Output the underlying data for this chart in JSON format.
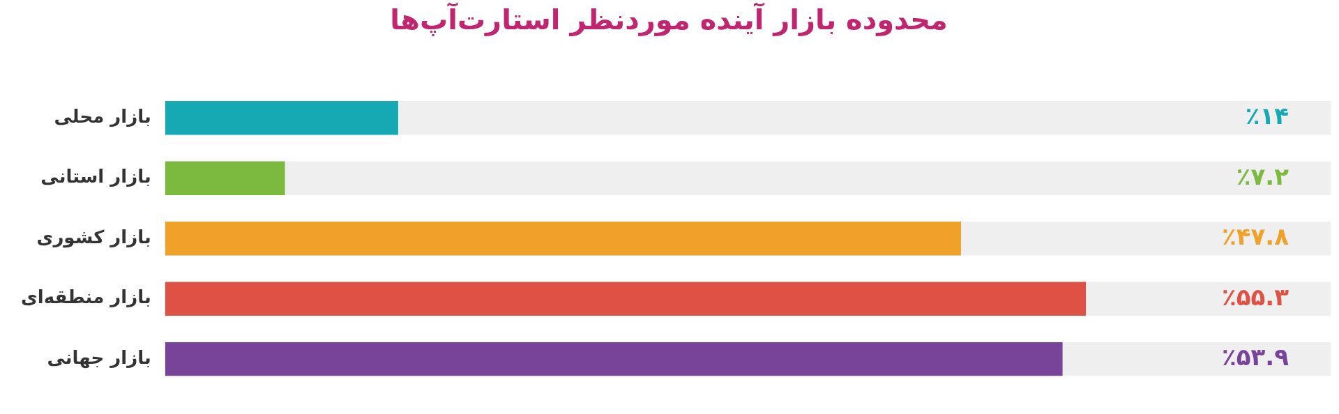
{
  "chart_data": {
    "type": "bar",
    "orientation": "horizontal",
    "title": "محدوده بازار آینده موردنظر استارت‌آپ‌ها",
    "categories": [
      "بازار محلی",
      "بازار استانی",
      "بازار کشوری",
      "بازار منطقه‌ای",
      "بازار جهانی"
    ],
    "values": [
      14,
      7.2,
      47.8,
      55.3,
      53.9
    ],
    "colors": [
      "#17a9b3",
      "#7cba3f",
      "#f0a12a",
      "#e05145",
      "#774499"
    ],
    "value_labels": [
      "٪۱۴",
      "٪۷.۲",
      "٪۴۷.۸",
      "٪۵۵.۳",
      "٪۵۳.۹"
    ],
    "grid": false,
    "legend": false
  }
}
